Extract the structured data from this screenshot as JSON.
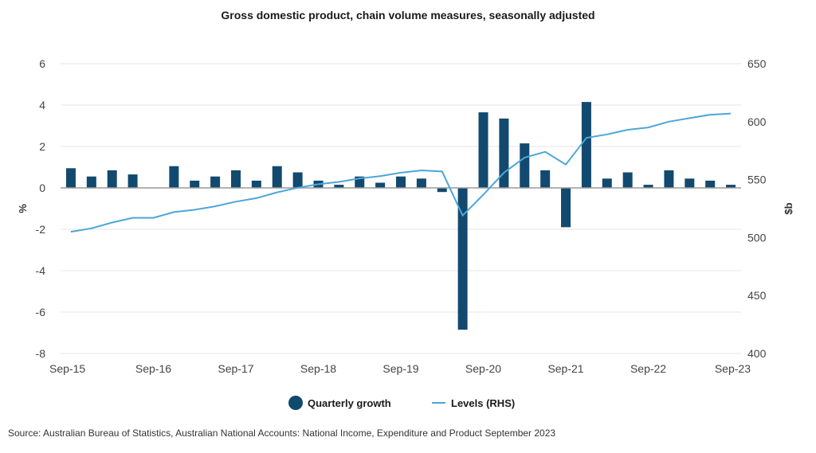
{
  "chart_data": {
    "type": "bar",
    "title": "Gross domestic product, chain volume measures, seasonally adjusted",
    "ylabel": "%",
    "y2label": "$b",
    "ylim": [
      -8,
      6
    ],
    "y2lim": [
      400,
      650
    ],
    "yticks": [
      "6",
      "4",
      "2",
      "0",
      "-2",
      "-4",
      "-6",
      "-8"
    ],
    "y2ticks": [
      "650",
      "600",
      "550",
      "500",
      "450",
      "400"
    ],
    "xticks": [
      "Sep-15",
      "Sep-16",
      "Sep-17",
      "Sep-18",
      "Sep-19",
      "Sep-20",
      "Sep-21",
      "Sep-22",
      "Sep-23"
    ],
    "grid": true,
    "legend_position": "bottom",
    "x": [
      "Sep-15",
      "Dec-15",
      "Mar-16",
      "Jun-16",
      "Sep-16",
      "Dec-16",
      "Mar-17",
      "Jun-17",
      "Sep-17",
      "Dec-17",
      "Mar-18",
      "Jun-18",
      "Sep-18",
      "Dec-18",
      "Mar-19",
      "Jun-19",
      "Sep-19",
      "Dec-19",
      "Mar-20",
      "Jun-20",
      "Sep-20",
      "Dec-20",
      "Mar-21",
      "Jun-21",
      "Sep-21",
      "Dec-21",
      "Mar-22",
      "Jun-22",
      "Sep-22",
      "Dec-22",
      "Mar-23",
      "Jun-23",
      "Sep-23"
    ],
    "series": [
      {
        "name": "Quarterly growth",
        "type": "bar",
        "axis": "left",
        "color": "#12496f",
        "values": [
          0.95,
          0.55,
          0.85,
          0.65,
          0.0,
          1.05,
          0.35,
          0.55,
          0.85,
          0.35,
          1.05,
          0.75,
          0.35,
          0.15,
          0.55,
          0.25,
          0.55,
          0.45,
          -0.2,
          -6.85,
          3.65,
          3.35,
          2.15,
          0.85,
          -1.9,
          4.15,
          0.45,
          0.75,
          0.15,
          0.85,
          0.45,
          0.35,
          0.15
        ]
      },
      {
        "name": "Levels (RHS)",
        "type": "line",
        "axis": "right",
        "color": "#4da6d9",
        "values": [
          505,
          508,
          513,
          517,
          517,
          522,
          524,
          527,
          531,
          534,
          539,
          543,
          546,
          548,
          551,
          553,
          556,
          558,
          557,
          519,
          537,
          556,
          569,
          574,
          563,
          586,
          589,
          593,
          595,
          600,
          603,
          606,
          607
        ]
      }
    ],
    "source": "Source: Australian Bureau of Statistics, Australian National Accounts: National Income, Expenditure and Product September 2023"
  }
}
